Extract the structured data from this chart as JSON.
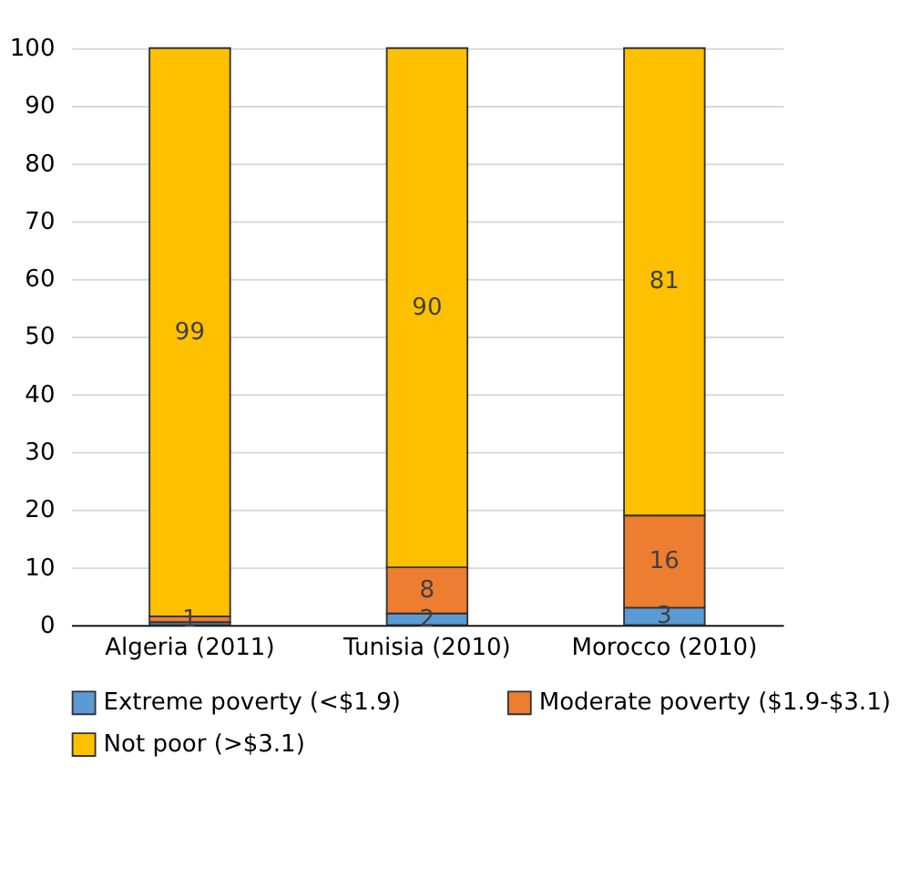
{
  "chart_data": {
    "type": "bar",
    "stacked": true,
    "categories": [
      "Algeria (2011)",
      "Tunisia (2010)",
      "Morocco (2010)"
    ],
    "series": [
      {
        "name": "Extreme poverty (<$1.9)",
        "color": "#5b9bd5",
        "values": [
          0.5,
          2,
          3
        ],
        "value_labels": [
          null,
          "2",
          "3"
        ]
      },
      {
        "name": "Moderate poverty ($1.9-$3.1)",
        "color": "#ed7d31",
        "values": [
          1,
          8,
          16
        ],
        "value_labels": [
          "1",
          "8",
          "16"
        ]
      },
      {
        "name": "Not poor (>$3.1)",
        "color": "#ffc000",
        "values": [
          98.5,
          90,
          81
        ],
        "value_labels": [
          "99",
          "90",
          "81"
        ]
      }
    ],
    "ylim": [
      0,
      100
    ],
    "yticks": [
      0,
      10,
      20,
      30,
      40,
      50,
      60,
      70,
      80,
      90,
      100
    ],
    "grid": "y",
    "legend": "bottom"
  }
}
